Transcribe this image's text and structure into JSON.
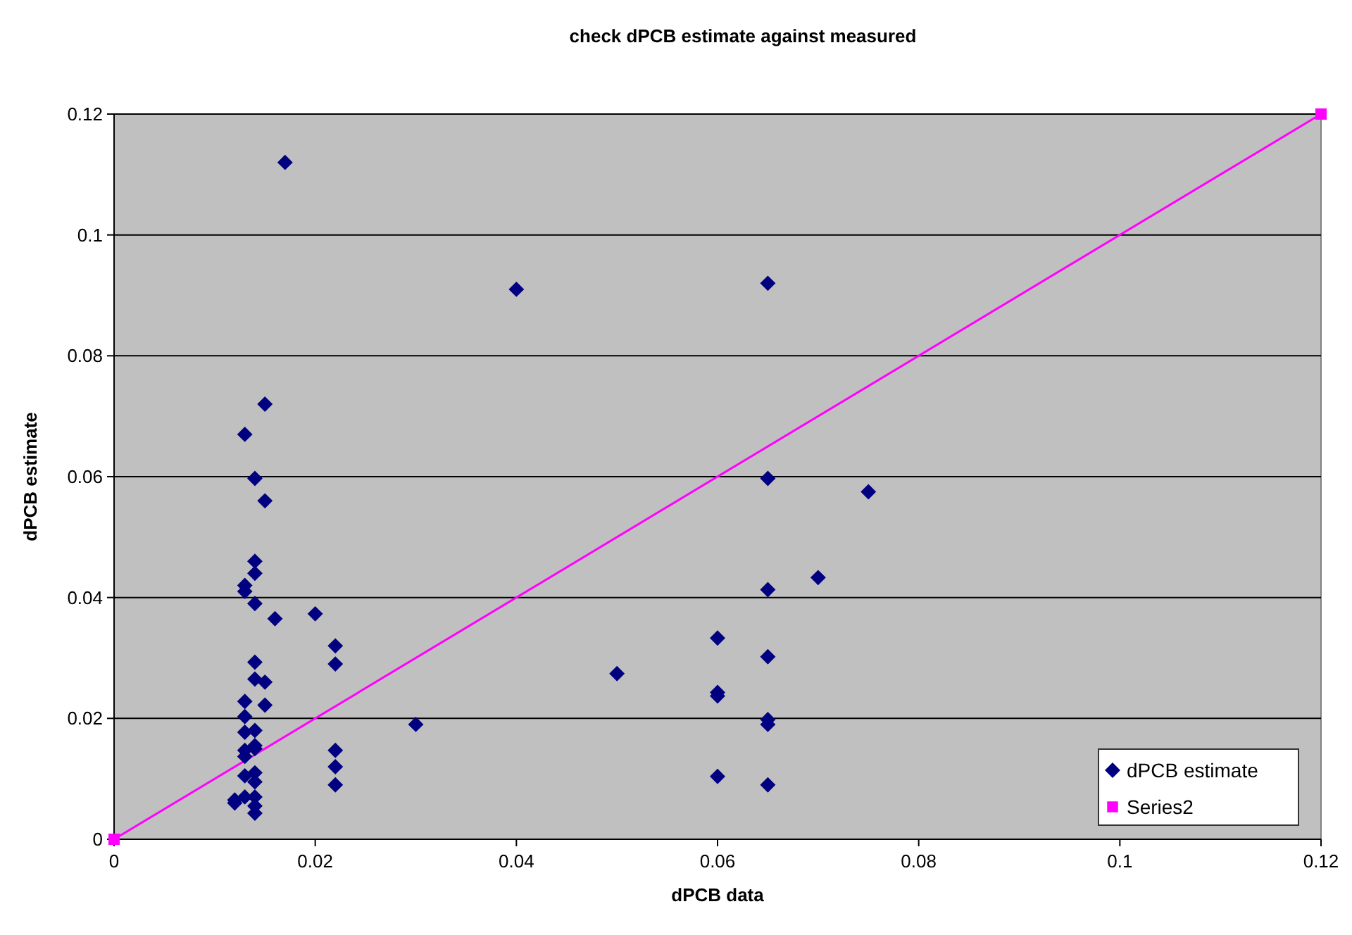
{
  "chart_data": {
    "type": "scatter",
    "title": "check dPCB estimate against measured",
    "xlabel": "dPCB data",
    "ylabel": "dPCB estimate",
    "xlim": [
      0,
      0.12
    ],
    "ylim": [
      0,
      0.12
    ],
    "xticks": [
      0,
      0.02,
      0.04,
      0.06,
      0.08,
      0.1,
      0.12
    ],
    "yticks": [
      0,
      0.02,
      0.04,
      0.06,
      0.08,
      0.1,
      0.12
    ],
    "grid": "y",
    "legend": "bottom right",
    "series": [
      {
        "name": "dPCB estimate",
        "color": "#000080",
        "marker": "diamond",
        "x": [
          0.017,
          0.04,
          0.065,
          0.015,
          0.013,
          0.014,
          0.015,
          0.065,
          0.075,
          0.014,
          0.014,
          0.013,
          0.013,
          0.014,
          0.016,
          0.02,
          0.07,
          0.065,
          0.022,
          0.022,
          0.06,
          0.065,
          0.014,
          0.014,
          0.015,
          0.05,
          0.06,
          0.06,
          0.015,
          0.013,
          0.013,
          0.065,
          0.065,
          0.03,
          0.013,
          0.014,
          0.014,
          0.013,
          0.013,
          0.014,
          0.022,
          0.022,
          0.013,
          0.014,
          0.014,
          0.06,
          0.065,
          0.022,
          0.012,
          0.012,
          0.013,
          0.014,
          0.014,
          0.014
        ],
        "values": [
          0.112,
          0.091,
          0.092,
          0.072,
          0.067,
          0.0597,
          0.056,
          0.0597,
          0.0575,
          0.046,
          0.044,
          0.042,
          0.041,
          0.039,
          0.0365,
          0.0373,
          0.0433,
          0.0413,
          0.032,
          0.029,
          0.0333,
          0.0302,
          0.0293,
          0.0265,
          0.026,
          0.0274,
          0.0243,
          0.0237,
          0.0222,
          0.0228,
          0.0203,
          0.0198,
          0.019,
          0.019,
          0.0177,
          0.018,
          0.0155,
          0.0147,
          0.0137,
          0.015,
          0.0147,
          0.012,
          0.0105,
          0.011,
          0.0095,
          0.0104,
          0.009,
          0.009,
          0.0065,
          0.006,
          0.007,
          0.007,
          0.0055,
          0.0043
        ]
      },
      {
        "name": "Series2",
        "color": "#ff00ff",
        "type": "line",
        "marker": "square",
        "x": [
          0,
          0.12
        ],
        "values": [
          0,
          0.12
        ]
      }
    ]
  }
}
